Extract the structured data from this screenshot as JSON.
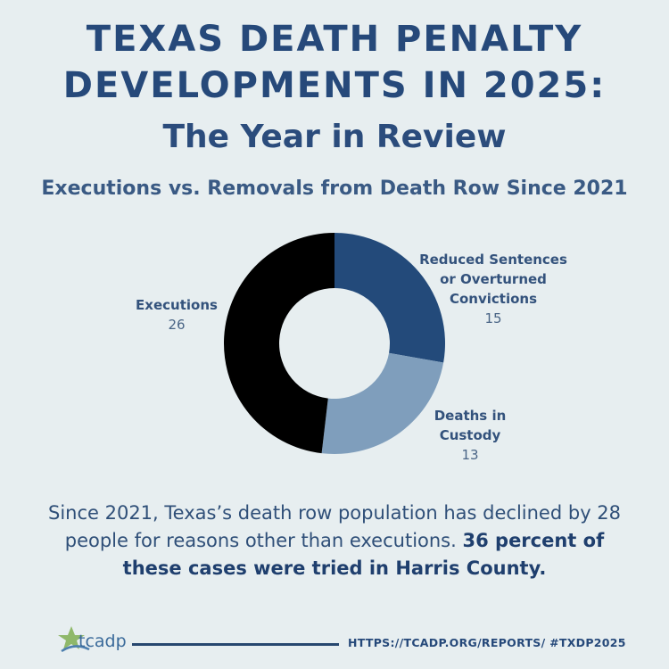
{
  "header": {
    "title_line1": "TEXAS DEATH PENALTY",
    "title_line2": "DEVELOPMENTS IN 2025:",
    "subtitle": "The Year in Review"
  },
  "chart_data": {
    "type": "pie",
    "title": "Executions vs. Removals from Death Row Since 2021",
    "slices": [
      {
        "name_lines": [
          "Reduced Sentences",
          "or Overturned",
          "Convictions"
        ],
        "value": 15,
        "color": "#234a7a"
      },
      {
        "name_lines": [
          "Deaths in",
          "Custody"
        ],
        "value": 13,
        "color": "#7f9ebc"
      },
      {
        "name_lines": [
          "Executions"
        ],
        "value": 26,
        "color": "#000000"
      }
    ]
  },
  "summary": {
    "text": "Since 2021, Texas’s death row population has declined by 28 people for reasons other than executions.",
    "bold": "36 percent of these cases were tried in Harris County."
  },
  "footer": {
    "logo_text": "tcadp",
    "link": "HTTPS://TCADP.ORG/REPORTS/ #TXDP2025"
  }
}
